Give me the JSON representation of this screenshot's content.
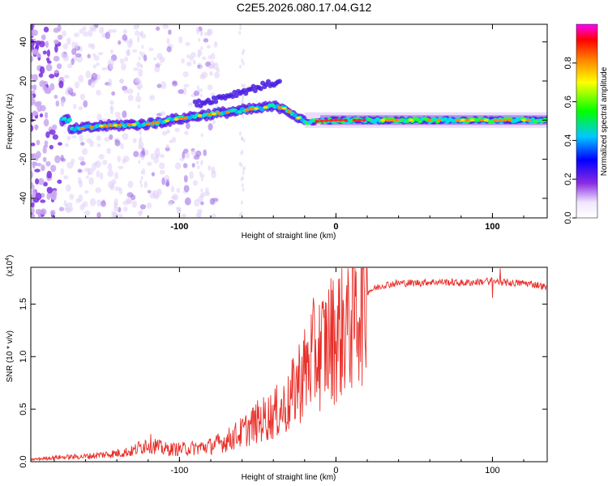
{
  "title": "C2E5.2026.080.17.04.G12",
  "colors": {
    "axis": "#000000",
    "snr_line": "#e8302a",
    "background": "#ffffff"
  },
  "chart_data": [
    {
      "type": "heatmap",
      "title": "C2E5.2026.080.17.04.G12",
      "xlabel": "Height of straight line (km)",
      "ylabel": "Frequency (Hz)",
      "xlim": [
        -195,
        135
      ],
      "ylim": [
        -50,
        49
      ],
      "x_ticks": [
        -100,
        0,
        100
      ],
      "y_ticks": [
        -40,
        -20,
        0,
        20,
        40
      ],
      "colorbar": {
        "label": "Normalized spectral amplitude",
        "range": [
          0,
          1
        ],
        "ticks": [
          "0.0",
          "0.2",
          "0.4",
          "0.6",
          "0.8"
        ]
      },
      "ridge": [
        {
          "x": -170,
          "y": -5
        },
        {
          "x": -150,
          "y": -3
        },
        {
          "x": -120,
          "y": -2
        },
        {
          "x": -90,
          "y": 2
        },
        {
          "x": -60,
          "y": 5
        },
        {
          "x": -40,
          "y": 7
        },
        {
          "x": -33,
          "y": 6
        },
        {
          "x": -20,
          "y": -1
        },
        {
          "x": 0,
          "y": 0
        },
        {
          "x": 50,
          "y": 0
        },
        {
          "x": 135,
          "y": 0
        }
      ]
    },
    {
      "type": "line",
      "xlabel": "Height of straight line (km)",
      "ylabel": "SNR (10 * v/v)",
      "scale_label": "(x10",
      "scale_exp": "4",
      "xlim": [
        -195,
        135
      ],
      "ylim": [
        0,
        1.85
      ],
      "x_ticks": [
        -100,
        0,
        100
      ],
      "y_ticks": [
        "0.0",
        "0.5",
        "1.0",
        "1.5"
      ],
      "series": [
        {
          "name": "SNR",
          "x": [
            -195,
            -180,
            -160,
            -140,
            -130,
            -120,
            -110,
            -100,
            -90,
            -80,
            -70,
            -60,
            -50,
            -40,
            -30,
            -25,
            -20,
            -15,
            -10,
            -5,
            0,
            5,
            10,
            15,
            20,
            25,
            30,
            40,
            50,
            60,
            70,
            80,
            90,
            100,
            110,
            120,
            130,
            135
          ],
          "y": [
            0.02,
            0.04,
            0.05,
            0.08,
            0.1,
            0.18,
            0.12,
            0.12,
            0.13,
            0.15,
            0.2,
            0.28,
            0.38,
            0.45,
            0.55,
            0.75,
            0.85,
            1.0,
            1.05,
            1.15,
            1.2,
            1.3,
            1.4,
            1.55,
            1.62,
            1.65,
            1.68,
            1.7,
            1.7,
            1.71,
            1.71,
            1.7,
            1.71,
            1.72,
            1.7,
            1.7,
            1.68,
            1.65
          ]
        }
      ]
    }
  ]
}
